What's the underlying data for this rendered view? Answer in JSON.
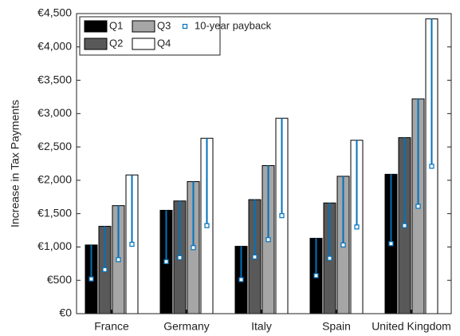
{
  "chart_data": {
    "type": "bar",
    "y_label": "Increase in Tax Payments",
    "categories": [
      "France",
      "Germany",
      "Italy",
      "Spain",
      "United Kingdom"
    ],
    "series": [
      {
        "name": "Q1",
        "color": "#000000",
        "values": [
          1030,
          1550,
          1010,
          1130,
          2090
        ]
      },
      {
        "name": "Q2",
        "color": "#595959",
        "values": [
          1310,
          1690,
          1710,
          1660,
          2640
        ]
      },
      {
        "name": "Q3",
        "color": "#a6a6a6",
        "values": [
          1620,
          1980,
          2220,
          2060,
          3220
        ]
      },
      {
        "name": "Q4",
        "color": "#ffffff",
        "values": [
          2080,
          2630,
          2930,
          2600,
          4420
        ]
      }
    ],
    "payback": {
      "name": "10-year payback",
      "color": "#0072bd",
      "values": [
        [
          520,
          780,
          510,
          570,
          1050
        ],
        [
          660,
          840,
          850,
          830,
          1320
        ],
        [
          810,
          990,
          1110,
          1030,
          1610
        ],
        [
          1040,
          1320,
          1470,
          1300,
          2210
        ]
      ]
    },
    "ylim": [
      0,
      4500
    ],
    "yticks": [
      {
        "value": 0,
        "label": "€0"
      },
      {
        "value": 500,
        "label": "€500"
      },
      {
        "value": 1000,
        "label": "€1,000"
      },
      {
        "value": 1500,
        "label": "€1,500"
      },
      {
        "value": 2000,
        "label": "€2,000"
      },
      {
        "value": 2500,
        "label": "€2,500"
      },
      {
        "value": 3000,
        "label": "€3,000"
      },
      {
        "value": 3500,
        "label": "€3,500"
      },
      {
        "value": 4000,
        "label": "€4,000"
      },
      {
        "value": 4500,
        "label": "€4,500"
      }
    ],
    "grid": false
  }
}
